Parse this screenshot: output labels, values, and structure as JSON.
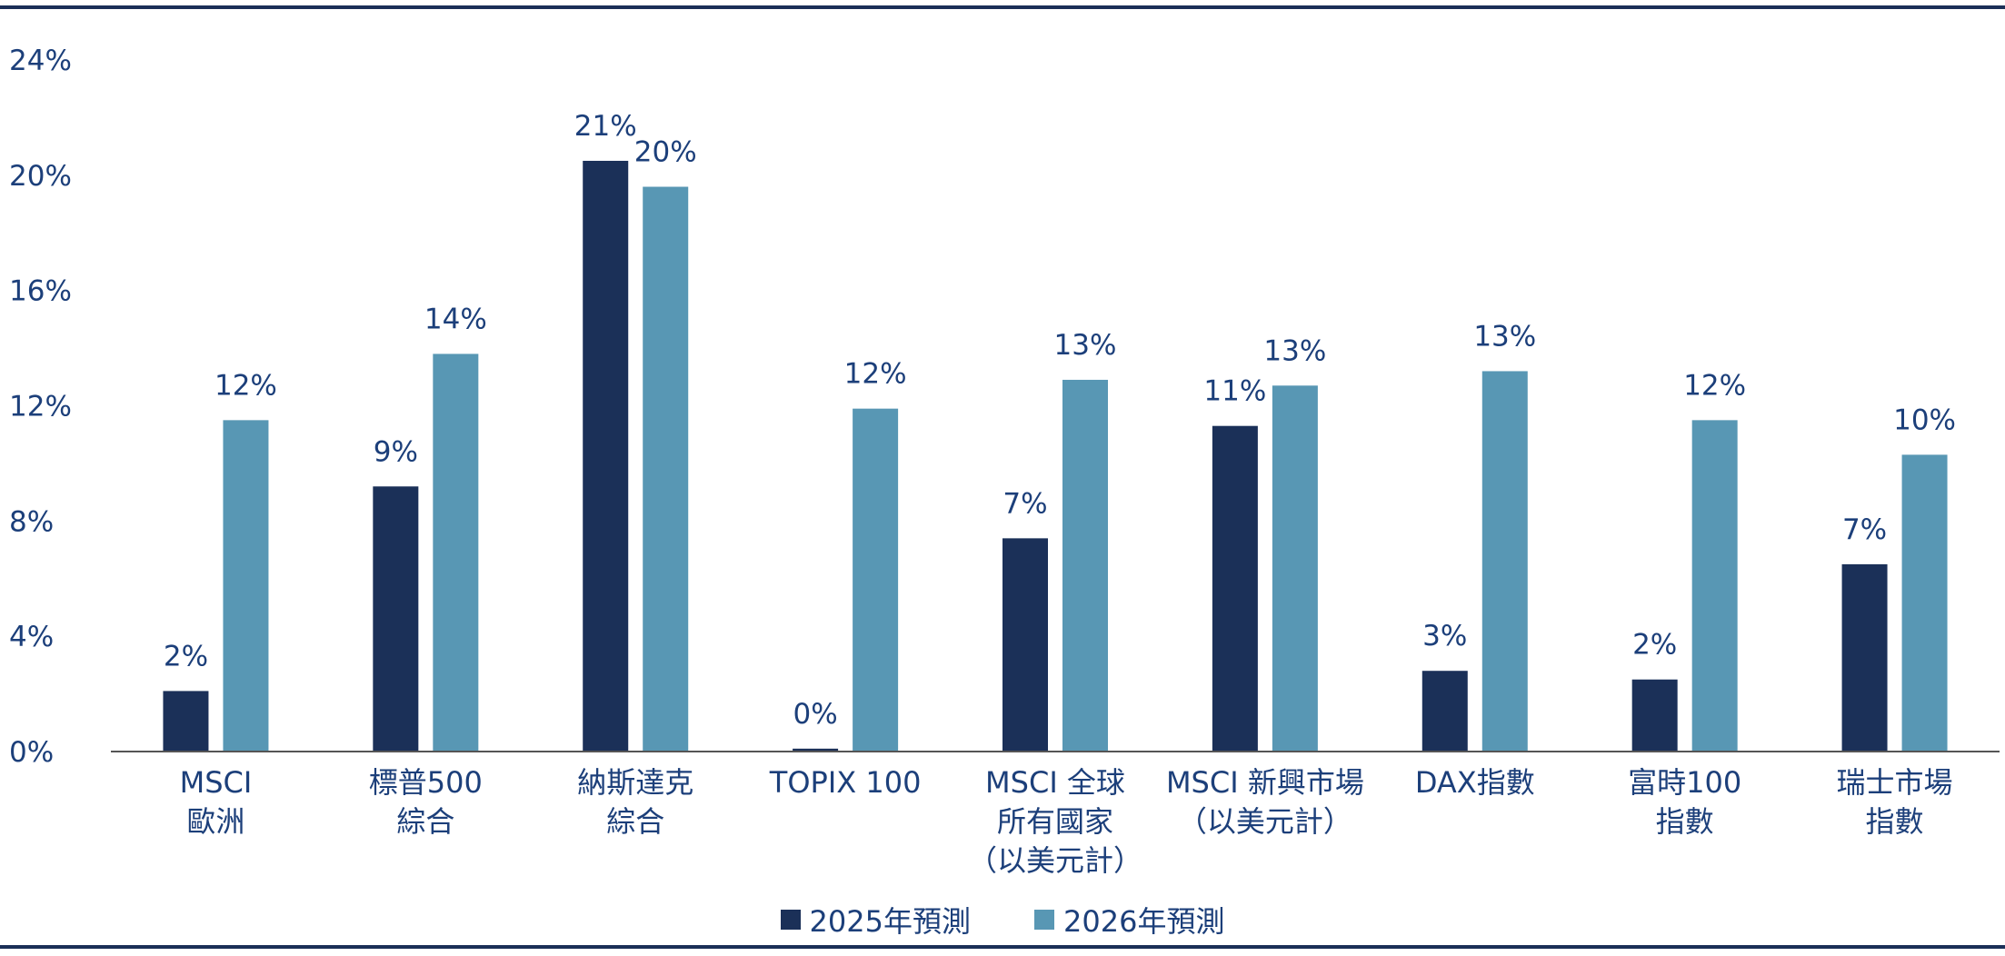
{
  "colors": {
    "series_2025": "#1b3058",
    "series_2026": "#5897b4",
    "text": "#1c3f7a",
    "rule": "#1b2f57",
    "axis": "#555555"
  },
  "chart_data": {
    "type": "bar",
    "title": "",
    "xlabel": "",
    "ylabel": "",
    "ylim": [
      0,
      24
    ],
    "yticks": [
      0,
      4,
      8,
      12,
      16,
      20,
      24
    ],
    "ytick_labels": [
      "0%",
      "4%",
      "8%",
      "12%",
      "16%",
      "20%",
      "24%"
    ],
    "grid": false,
    "legend_position": "bottom",
    "categories": [
      [
        "MSCI",
        "歐洲"
      ],
      [
        "標普500",
        "綜合"
      ],
      [
        "納斯達克",
        "綜合"
      ],
      [
        "TOPIX 100"
      ],
      [
        "MSCI 全球",
        "所有國家",
        "（以美元計）"
      ],
      [
        "MSCI 新興市場",
        "（以美元計）"
      ],
      [
        "DAX指數"
      ],
      [
        "富時100",
        "指數"
      ],
      [
        "瑞士市場",
        "指數"
      ]
    ],
    "series": [
      {
        "name": "2025年預測",
        "values": [
          2.1,
          9.2,
          20.5,
          0.1,
          7.4,
          11.3,
          2.8,
          2.5,
          6.5
        ],
        "labels": [
          "2%",
          "9%",
          "21%",
          "0%",
          "7%",
          "11%",
          "3%",
          "2%",
          "7%"
        ]
      },
      {
        "name": "2026年預測",
        "values": [
          11.5,
          13.8,
          19.6,
          11.9,
          12.9,
          12.7,
          13.2,
          11.5,
          10.3
        ],
        "labels": [
          "12%",
          "14%",
          "20%",
          "12%",
          "13%",
          "13%",
          "13%",
          "12%",
          "10%"
        ]
      }
    ]
  }
}
